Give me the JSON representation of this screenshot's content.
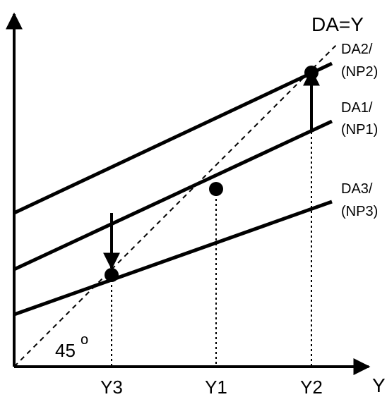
{
  "diagram": {
    "title_line_label": "DA=Y",
    "angle_label": "45",
    "angle_unit": "o",
    "y_axis_label": "Y",
    "curves": [
      {
        "line1": "DA2/",
        "line2": "(NP2)"
      },
      {
        "line1": "DA1/",
        "line2": "(NP1)"
      },
      {
        "line1": "DA3/",
        "line2": "(NP3)"
      }
    ],
    "x_ticks": [
      "Y3",
      "Y1",
      "Y2"
    ],
    "colors": {
      "ink": "#000000",
      "background": "#ffffff"
    }
  }
}
